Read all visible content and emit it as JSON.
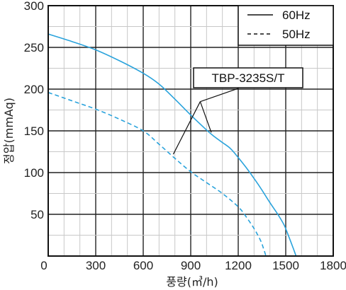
{
  "chart_data": {
    "type": "line",
    "xlabel": "풍량(㎥/h)",
    "ylabel": "정압(mmAq)",
    "xlim": [
      0,
      1800
    ],
    "ylim": [
      0,
      300
    ],
    "x_ticks": [
      "0",
      "300",
      "600",
      "900",
      "1200",
      "1500",
      "1800"
    ],
    "y_ticks": [
      "0",
      "50",
      "100",
      "150",
      "200",
      "250",
      "300"
    ],
    "grid": "on",
    "legend_position": "top-right",
    "annotation": "TBP-3235S/T",
    "series": [
      {
        "name": "60Hz",
        "style": "solid",
        "color": "#2aa3dc",
        "x": [
          0,
          150,
          300,
          450,
          600,
          700,
          800,
          900,
          1000,
          1050,
          1100,
          1150,
          1200,
          1250,
          1300,
          1350,
          1400,
          1450,
          1490,
          1520,
          1550,
          1565
        ],
        "y": [
          266,
          257,
          247,
          234,
          219,
          206,
          188,
          169,
          151,
          143,
          136,
          129,
          118,
          106,
          93,
          79,
          64,
          50,
          37,
          23,
          8,
          0
        ]
      },
      {
        "name": "50Hz",
        "style": "dashed",
        "color": "#2aa3dc",
        "x": [
          0,
          150,
          300,
          450,
          600,
          700,
          800,
          900,
          1000,
          1100,
          1200,
          1250,
          1300,
          1340,
          1360,
          1375
        ],
        "y": [
          196,
          186,
          176,
          164,
          150,
          134,
          117,
          101,
          88,
          75,
          59,
          47,
          33,
          19,
          9,
          0
        ]
      }
    ]
  }
}
